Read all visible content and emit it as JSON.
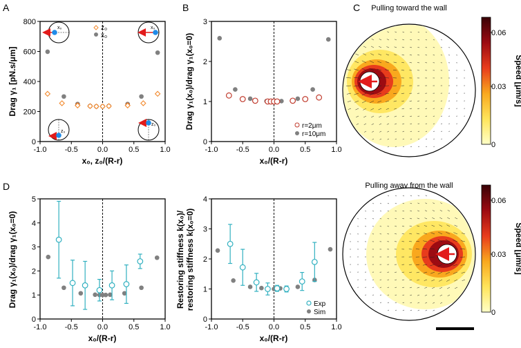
{
  "panel_letters": [
    "A",
    "B",
    "C",
    "D"
  ],
  "chart_data": [
    {
      "id": "A",
      "type": "scatter",
      "xlabel": "x₀, z₀/(R-r)",
      "ylabel": "Drag γ₁ [pN.s/μm]",
      "xlim": [
        -1.0,
        1.0
      ],
      "ylim": [
        0,
        800
      ],
      "xticks": [
        -1.0,
        -0.5,
        0.0,
        0.5,
        1.0
      ],
      "xtick_labels": [
        "-1.0",
        "-0.5",
        "0.0",
        "0.5",
        "1.0"
      ],
      "yticks": [
        0,
        200,
        400,
        600,
        800
      ],
      "ytick_labels": [
        "0",
        "200",
        "400",
        "600",
        "800"
      ],
      "legend": [
        "z₀",
        "x₀"
      ],
      "legend_position": "top-right",
      "inset_labels": [
        "x₀",
        "x₀",
        "z₀",
        "z₀"
      ],
      "series": [
        {
          "name": "z₀",
          "marker": "diamond-open",
          "color": "#f28a2e",
          "x": [
            -0.88,
            -0.65,
            -0.4,
            -0.2,
            -0.1,
            0.0,
            0.1,
            0.4,
            0.65,
            0.88
          ],
          "y": [
            318,
            255,
            240,
            236,
            234,
            234,
            236,
            240,
            255,
            318
          ]
        },
        {
          "name": "x₀",
          "marker": "circle",
          "color": "#808080",
          "x": [
            -0.88,
            -0.62,
            -0.4,
            -0.2,
            -0.1,
            0.0,
            0.1,
            0.4,
            0.62,
            0.88
          ],
          "y": [
            598,
            300,
            250,
            237,
            234,
            234,
            237,
            250,
            300,
            592
          ]
        },
        {
          "name": "",
          "marker": "circle",
          "color": "#b5704a",
          "x": [
            -0.4,
            -0.2,
            -0.1,
            0.0,
            0.1,
            0.4
          ],
          "y": [
            245,
            236,
            234,
            234,
            236,
            245
          ]
        }
      ]
    },
    {
      "id": "B",
      "type": "scatter",
      "xlabel": "x₀/(R-r)",
      "ylabel": "Drag γ₁(x₀)/drag γ₁(x₀=0)",
      "xlim": [
        -1.0,
        1.0
      ],
      "ylim": [
        0,
        3
      ],
      "xticks": [
        -1.0,
        -0.5,
        0.0,
        0.5,
        1.0
      ],
      "xtick_labels": [
        "-1.0",
        "-0.5",
        "0.0",
        "0.5",
        "1.0"
      ],
      "yticks": [
        0,
        1,
        2,
        3
      ],
      "ytick_labels": [
        "0",
        "1",
        "2",
        "3"
      ],
      "legend": [
        "r=2μm",
        "r=10μm"
      ],
      "legend_position": "bottom-right",
      "series": [
        {
          "name": "r=2μm",
          "marker": "circle-open",
          "color": "#c0392b",
          "x": [
            -0.72,
            -0.5,
            -0.3,
            -0.1,
            -0.05,
            0.0,
            0.05,
            0.3,
            0.5,
            0.72
          ],
          "y": [
            1.15,
            1.06,
            1.02,
            1.0,
            1.0,
            1.0,
            1.0,
            1.02,
            1.06,
            1.1
          ]
        },
        {
          "name": "r=10μm",
          "marker": "circle",
          "color": "#808080",
          "x": [
            -0.87,
            -0.62,
            -0.38,
            -0.12,
            -0.05,
            0.0,
            0.05,
            0.12,
            0.38,
            0.62,
            0.87
          ],
          "y": [
            2.58,
            1.3,
            1.07,
            1.01,
            1.0,
            1.0,
            1.0,
            1.01,
            1.07,
            1.3,
            2.55
          ]
        }
      ]
    },
    {
      "id": "D-left",
      "type": "scatter",
      "xlabel": "x₀/(R-r)",
      "ylabel": "Drag γ₁(x₀)/drag γ₁(x₀=0)",
      "xlim": [
        -1.0,
        1.0
      ],
      "ylim": [
        0,
        5
      ],
      "xticks": [
        -1.0,
        -0.5,
        0.0,
        0.5,
        1.0
      ],
      "xtick_labels": [
        "-1.0",
        "-0.5",
        "0.0",
        "0.5",
        "1.0"
      ],
      "yticks": [
        0,
        1,
        2,
        3,
        4,
        5
      ],
      "ytick_labels": [
        "0",
        "1",
        "2",
        "3",
        "4",
        "5"
      ],
      "series": [
        {
          "name": "Exp",
          "marker": "circle-open-errorbar",
          "color": "#31b0c0",
          "x": [
            -0.7,
            -0.48,
            -0.28,
            -0.05,
            0.15,
            0.38,
            0.6
          ],
          "y": [
            3.3,
            1.5,
            1.4,
            1.2,
            1.4,
            1.45,
            2.4
          ],
          "err": [
            1.6,
            0.95,
            1.0,
            0.45,
            0.6,
            0.8,
            0.3
          ]
        },
        {
          "name": "Sim",
          "marker": "circle",
          "color": "#808080",
          "x": [
            -0.87,
            -0.62,
            -0.35,
            -0.12,
            -0.05,
            0.0,
            0.05,
            0.12,
            0.35,
            0.62,
            0.87
          ],
          "y": [
            2.58,
            1.3,
            1.07,
            1.01,
            1.0,
            1.0,
            1.0,
            1.01,
            1.07,
            1.3,
            2.55
          ]
        }
      ]
    },
    {
      "id": "D-right",
      "type": "scatter",
      "xlabel": "x₀/(R-r)",
      "ylabel_line1": "Restoring stiffness k(x₀)/",
      "ylabel_line2": "restoring stiffness k(x₀=0)",
      "xlim": [
        -1.0,
        1.0
      ],
      "ylim": [
        0,
        4
      ],
      "xticks": [
        -1.0,
        -0.5,
        0.0,
        0.5,
        1.0
      ],
      "xtick_labels": [
        "-1.0",
        "-0.5",
        "0.0",
        "0.5",
        "1.0"
      ],
      "yticks": [
        0,
        1,
        2,
        3,
        4
      ],
      "ytick_labels": [
        "0",
        "1",
        "2",
        "3",
        "4"
      ],
      "legend": [
        "Exp",
        "Sim"
      ],
      "legend_position": "bottom-right",
      "series": [
        {
          "name": "Exp",
          "marker": "circle-open-errorbar",
          "color": "#31b0c0",
          "x": [
            -0.7,
            -0.5,
            -0.28,
            -0.1,
            0.05,
            0.2,
            0.45,
            0.65
          ],
          "y": [
            2.5,
            1.72,
            1.22,
            1.0,
            1.02,
            1.0,
            1.25,
            1.9
          ],
          "err": [
            0.65,
            0.6,
            0.3,
            0.2,
            0.1,
            0.1,
            0.3,
            0.65
          ]
        },
        {
          "name": "Sim",
          "marker": "circle",
          "color": "#808080",
          "x": [
            -0.9,
            -0.65,
            -0.38,
            -0.2,
            -0.1,
            0.0,
            0.1,
            0.2,
            0.38,
            0.65,
            0.9
          ],
          "y": [
            2.28,
            1.28,
            1.07,
            1.03,
            1.02,
            1.0,
            1.02,
            1.03,
            1.07,
            1.3,
            2.32
          ]
        }
      ]
    },
    {
      "id": "C-top",
      "type": "heatmap",
      "title": "Pulling toward the wall",
      "colorbar_label": "Speed [μm/s]",
      "colorbar_ticks": [
        "0",
        "0.03",
        "0.06"
      ],
      "colorbar_range": [
        0,
        0.07
      ],
      "colormap": [
        "#ffffc8",
        "#ffe45a",
        "#f9a81e",
        "#e83c1c",
        "#9c0b12",
        "#3a0206"
      ],
      "bead_offset_x": -0.58,
      "arrow_direction": "left",
      "arrow_color": "#e21b1b"
    },
    {
      "id": "C-bottom",
      "type": "heatmap",
      "title": "Pulling away from the wall",
      "colorbar_label": "Speed [μm/s]",
      "colorbar_ticks": [
        "0",
        "0.03",
        "0.06"
      ],
      "colorbar_range": [
        0,
        0.07
      ],
      "colormap": [
        "#ffffc8",
        "#ffe45a",
        "#f9a81e",
        "#e83c1c",
        "#9c0b12",
        "#3a0206"
      ],
      "bead_offset_x": 0.58,
      "arrow_direction": "left",
      "arrow_color": "#e21b1b"
    }
  ]
}
